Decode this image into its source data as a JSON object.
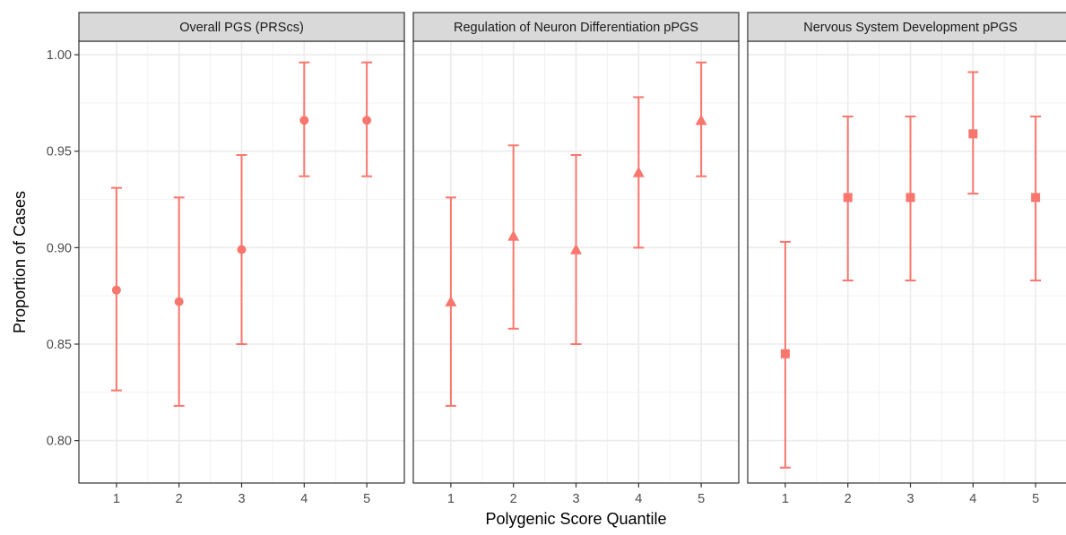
{
  "chart_data": {
    "type": "errorbar",
    "xlabel": "Polygenic Score Quantile",
    "ylabel": "Proportion of Cases",
    "x_categories": [
      "1",
      "2",
      "3",
      "4",
      "5"
    ],
    "ylim": [
      0.778,
      1.007
    ],
    "y_ticks": [
      0.8,
      0.85,
      0.9,
      0.95,
      1.0
    ],
    "y_tick_labels": [
      "0.80",
      "0.85",
      "0.90",
      "0.95",
      "1.00"
    ],
    "grid": true,
    "color": "#F8766D",
    "strip_color": "#D9D9D9",
    "panels": [
      {
        "title": "Overall PGS (PRScs)",
        "marker": "circle",
        "points": [
          {
            "x": "1",
            "y": 0.878,
            "ymin": 0.826,
            "ymax": 0.931
          },
          {
            "x": "2",
            "y": 0.872,
            "ymin": 0.818,
            "ymax": 0.926
          },
          {
            "x": "3",
            "y": 0.899,
            "ymin": 0.85,
            "ymax": 0.948
          },
          {
            "x": "4",
            "y": 0.966,
            "ymin": 0.937,
            "ymax": 0.996
          },
          {
            "x": "5",
            "y": 0.966,
            "ymin": 0.937,
            "ymax": 0.996
          }
        ]
      },
      {
        "title": "Regulation of Neuron Differentiation pPGS",
        "marker": "triangle",
        "points": [
          {
            "x": "1",
            "y": 0.872,
            "ymin": 0.818,
            "ymax": 0.926
          },
          {
            "x": "2",
            "y": 0.906,
            "ymin": 0.858,
            "ymax": 0.953
          },
          {
            "x": "3",
            "y": 0.899,
            "ymin": 0.85,
            "ymax": 0.948
          },
          {
            "x": "4",
            "y": 0.939,
            "ymin": 0.9,
            "ymax": 0.978
          },
          {
            "x": "5",
            "y": 0.966,
            "ymin": 0.937,
            "ymax": 0.996
          }
        ]
      },
      {
        "title": "Nervous System Development pPGS",
        "marker": "square",
        "points": [
          {
            "x": "1",
            "y": 0.845,
            "ymin": 0.786,
            "ymax": 0.903
          },
          {
            "x": "2",
            "y": 0.926,
            "ymin": 0.883,
            "ymax": 0.968
          },
          {
            "x": "3",
            "y": 0.926,
            "ymin": 0.883,
            "ymax": 0.968
          },
          {
            "x": "4",
            "y": 0.959,
            "ymin": 0.928,
            "ymax": 0.991
          },
          {
            "x": "5",
            "y": 0.926,
            "ymin": 0.883,
            "ymax": 0.968
          }
        ]
      }
    ]
  }
}
